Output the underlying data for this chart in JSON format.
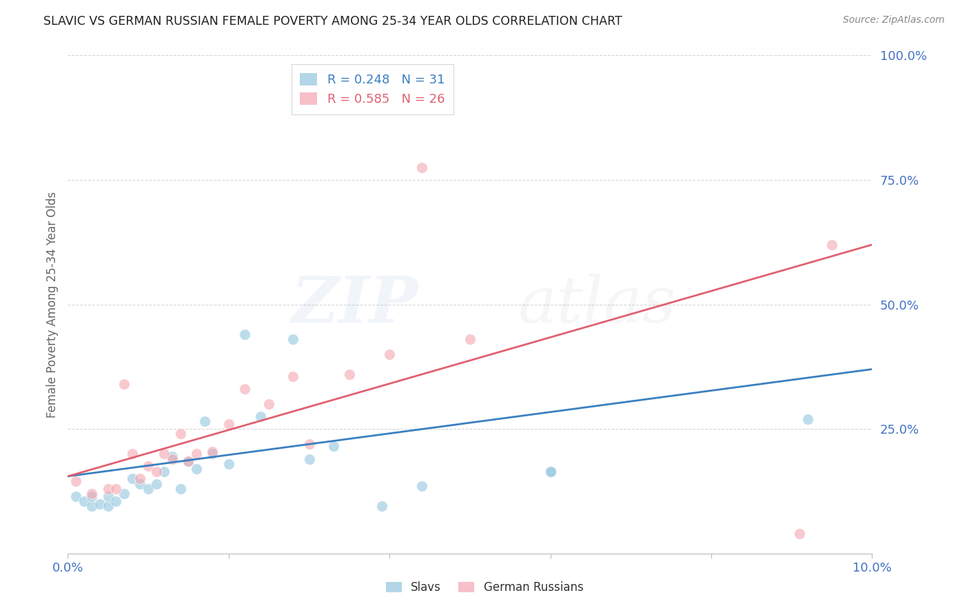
{
  "title": "SLAVIC VS GERMAN RUSSIAN FEMALE POVERTY AMONG 25-34 YEAR OLDS CORRELATION CHART",
  "source": "Source: ZipAtlas.com",
  "ylabel": "Female Poverty Among 25-34 Year Olds",
  "xlim": [
    0,
    0.1
  ],
  "ylim": [
    0,
    1.0
  ],
  "slavs_R": 0.248,
  "slavs_N": 31,
  "german_R": 0.585,
  "german_N": 26,
  "slavs_color": "#92c5de",
  "german_color": "#f4a5b0",
  "slavs_line_color": "#3a7fc1",
  "german_line_color": "#e06070",
  "background_color": "#ffffff",
  "watermark_zip": "ZIP",
  "watermark_atlas": "atlas",
  "slavs_x": [
    0.001,
    0.002,
    0.003,
    0.003,
    0.004,
    0.005,
    0.005,
    0.006,
    0.007,
    0.008,
    0.009,
    0.01,
    0.011,
    0.012,
    0.013,
    0.014,
    0.015,
    0.016,
    0.017,
    0.018,
    0.02,
    0.022,
    0.024,
    0.028,
    0.03,
    0.033,
    0.039,
    0.044,
    0.06,
    0.06,
    0.092
  ],
  "slavs_y": [
    0.115,
    0.105,
    0.095,
    0.115,
    0.1,
    0.095,
    0.115,
    0.105,
    0.12,
    0.15,
    0.14,
    0.13,
    0.14,
    0.165,
    0.195,
    0.13,
    0.185,
    0.17,
    0.265,
    0.2,
    0.18,
    0.44,
    0.275,
    0.43,
    0.19,
    0.215,
    0.095,
    0.135,
    0.165,
    0.165,
    0.27
  ],
  "german_x": [
    0.001,
    0.003,
    0.005,
    0.006,
    0.007,
    0.008,
    0.009,
    0.01,
    0.011,
    0.012,
    0.013,
    0.014,
    0.015,
    0.016,
    0.018,
    0.02,
    0.022,
    0.025,
    0.028,
    0.03,
    0.035,
    0.04,
    0.044,
    0.05,
    0.091,
    0.095
  ],
  "german_y": [
    0.145,
    0.12,
    0.13,
    0.13,
    0.34,
    0.2,
    0.15,
    0.175,
    0.165,
    0.2,
    0.19,
    0.24,
    0.185,
    0.2,
    0.205,
    0.26,
    0.33,
    0.3,
    0.355,
    0.22,
    0.36,
    0.4,
    0.775,
    0.43,
    0.04,
    0.62
  ],
  "slavs_line_x0": 0.0,
  "slavs_line_y0": 0.155,
  "slavs_line_x1": 0.1,
  "slavs_line_y1": 0.37,
  "german_line_x0": 0.0,
  "german_line_y0": 0.155,
  "german_line_x1": 0.1,
  "german_line_y1": 0.62
}
